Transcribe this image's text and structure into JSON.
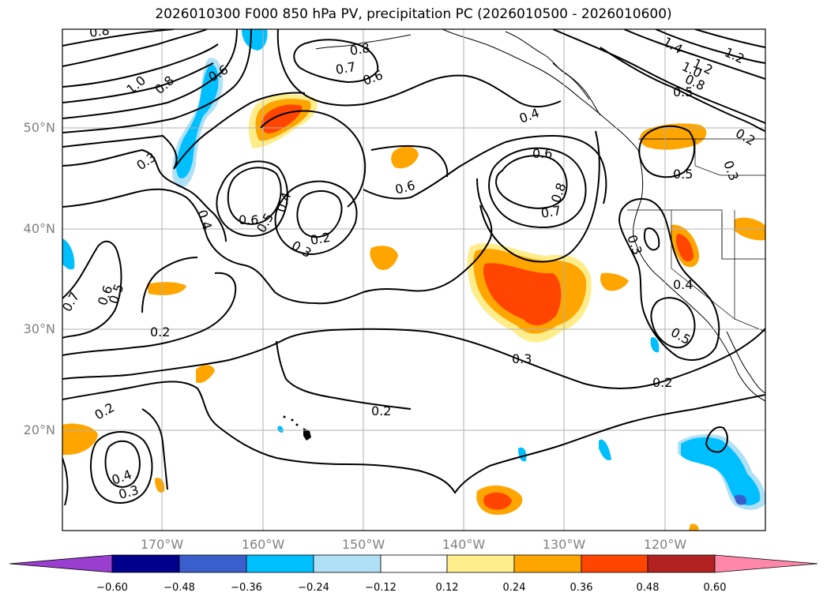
{
  "title": "2026010300 F000 850 hPa PV, precipitation PC (2026010500 - 2026010600)",
  "lat_labels": [
    "50°N",
    "40°N",
    "30°N",
    "20°N"
  ],
  "lon_labels": [
    "170°W",
    "160°W",
    "150°W",
    "140°W",
    "130°W",
    "120°W"
  ],
  "colorbar": {
    "ticks": [
      "−0.60",
      "−0.48",
      "−0.36",
      "−0.24",
      "−0.12",
      "0.12",
      "0.24",
      "0.36",
      "0.48",
      "0.60"
    ],
    "colors": [
      "#9a3ed0",
      "#00008b",
      "#3a5fcd",
      "#00bfff",
      "#b0e0f6",
      "#ffffff",
      "#ffec8b",
      "#ffa500",
      "#ff4500",
      "#b22222",
      "#ff88aa"
    ]
  },
  "contour_labels": [
    "0.8",
    "1.0",
    "0.8",
    "0.6",
    "0.3",
    "0.4",
    "0.6",
    "0.5",
    "0.4",
    "0.3",
    "0.2",
    "0.8",
    "0.7",
    "0.6",
    "0.4",
    "0.6",
    "0.6",
    "0.8",
    "0.7",
    "1.4",
    "1.2",
    "1.2",
    "1.0",
    "0.8",
    "0.5",
    "0.2",
    "0.3",
    "0.5",
    "0.3",
    "0.4",
    "0.5",
    "0.2",
    "0.3",
    "0.2",
    "0.2",
    "0.4",
    "0.3",
    "0.7",
    "0.6",
    "0.5",
    "0.2"
  ],
  "colors": {
    "land": "#000000",
    "grid": "#b0b0b0"
  }
}
